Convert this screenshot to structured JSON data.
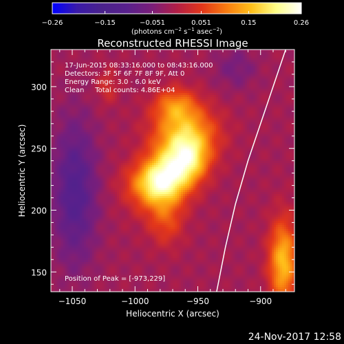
{
  "chart_data": {
    "type": "heatmap",
    "title": "Reconstructed RHESSI Image",
    "xlabel": "Heliocentric X (arcsec)",
    "ylabel": "Heliocentric Y (arcsec)",
    "xlim": [
      -1067,
      -873
    ],
    "ylim": [
      134,
      330
    ],
    "x_ticks": [
      -1050,
      -1000,
      -950,
      -900
    ],
    "x_tick_labels": [
      "−1050",
      "−1000",
      "−950",
      "−900"
    ],
    "y_ticks": [
      150,
      200,
      250,
      300
    ],
    "y_tick_labels": [
      "150",
      "200",
      "250",
      "300"
    ],
    "colorbar": {
      "min": -0.26,
      "max": 0.26,
      "ticks": [
        -0.26,
        -0.15,
        -0.051,
        0.051,
        0.15,
        0.26
      ],
      "tick_labels": [
        "−0.26",
        "−0.15",
        "−0.051",
        "0.051",
        "0.15",
        "0.26"
      ],
      "units_text": "(photons cm",
      "units_sup1": "−2",
      "units_mid": " s",
      "units_sup2": "−1",
      "units_end": " asec",
      "units_sup3": "−2",
      "units_close": ")",
      "colors": [
        "#0000ff",
        "#3a1aa8",
        "#4a228c",
        "#58208c",
        "#7a1e7a",
        "#b21e46",
        "#e2361a",
        "#f87c10",
        "#ffc01a",
        "#ffff8a",
        "#ffffff"
      ]
    },
    "annotations": [
      "17-Jun-2015 08:33:16.000 to 08:43:16.000",
      "Detectors: 3F 5F 6F 7F 8F 9F, Att 0",
      "Energy Range: 3.0 - 6.0 keV",
      "Clean     Total counts: 4.86E+04"
    ],
    "peak_label": "Position of Peak = [-973,229]",
    "peak": {
      "x": -973,
      "y": 229,
      "value": 0.26
    },
    "sources": [
      {
        "x": -973,
        "y": 229,
        "sx": 14,
        "sy": 20,
        "amp": 0.2,
        "rot": 0.6
      },
      {
        "x": -960,
        "y": 262,
        "sx": 18,
        "sy": 16,
        "amp": 0.15
      },
      {
        "x": -985,
        "y": 222,
        "sx": 16,
        "sy": 12,
        "amp": 0.1
      },
      {
        "x": -968,
        "y": 285,
        "sx": 12,
        "sy": 10,
        "amp": 0.1
      },
      {
        "x": -955,
        "y": 240,
        "sx": 10,
        "sy": 12,
        "amp": 0.09
      },
      {
        "x": -975,
        "y": 190,
        "sx": 10,
        "sy": 14,
        "amp": 0.07
      },
      {
        "x": -882,
        "y": 158,
        "sx": 8,
        "sy": 24,
        "amp": 0.17
      },
      {
        "x": -1022,
        "y": 300,
        "sx": 6,
        "sy": 10,
        "amp": 0.05
      },
      {
        "x": -1048,
        "y": 215,
        "sx": 12,
        "sy": 40,
        "amp": -0.1
      },
      {
        "x": -920,
        "y": 315,
        "sx": 12,
        "sy": 12,
        "amp": -0.04
      }
    ],
    "limb_curve": [
      [
        -880,
        330
      ],
      [
        -890,
        300
      ],
      [
        -900,
        270
      ],
      [
        -910,
        240
      ],
      [
        -920,
        205
      ],
      [
        -928,
        170
      ],
      [
        -935,
        134
      ]
    ],
    "footer_date": "24-Nov-2017 12:58"
  }
}
